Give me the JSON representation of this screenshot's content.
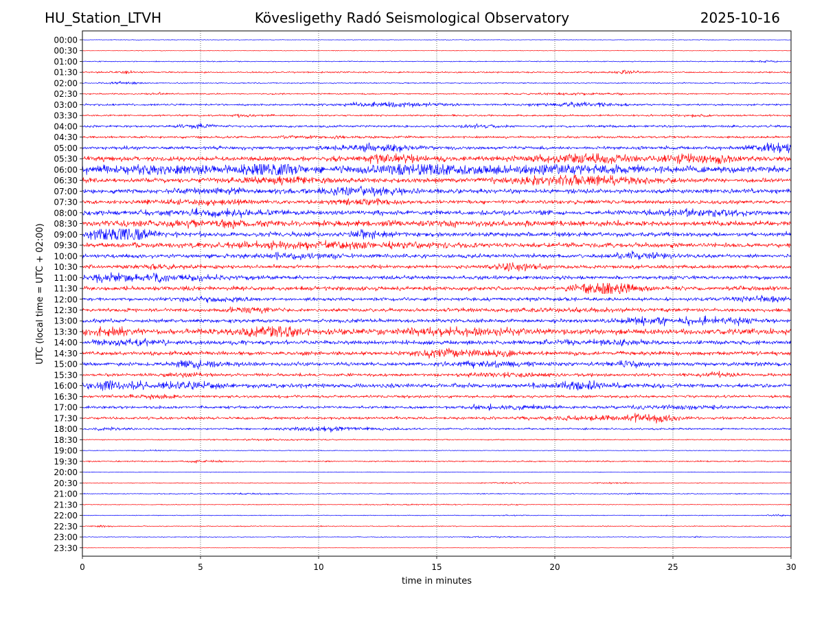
{
  "header": {
    "station": "HU_Station_LTVH",
    "observatory": "Kövesligethy Radó Seismological Observatory",
    "date": "2025-10-16"
  },
  "chart_data": {
    "type": "line",
    "title": "Kövesligethy Radó Seismological Observatory",
    "xlabel": "time in minutes",
    "ylabel": "UTC (local time = UTC + 02:00)",
    "xlim": [
      0,
      30
    ],
    "xticks": [
      0,
      5,
      10,
      15,
      20,
      25,
      30
    ],
    "vertical_gridlines": [
      5,
      10,
      15,
      20,
      25
    ],
    "colors": [
      "#0000ff",
      "#ff0000"
    ],
    "rows": [
      {
        "label": "00:00",
        "amp": 0.3,
        "bursts": [
          [
            16.5,
            0.2,
            1.5
          ]
        ]
      },
      {
        "label": "00:30",
        "amp": 0.3,
        "bursts": [
          [
            26.5,
            0.2,
            1.5
          ]
        ]
      },
      {
        "label": "01:00",
        "amp": 0.5,
        "bursts": [
          [
            28.8,
            0.4,
            3
          ]
        ]
      },
      {
        "label": "01:30",
        "amp": 0.8,
        "bursts": [
          [
            1.8,
            0.3,
            2.5
          ],
          [
            23,
            0.4,
            3
          ]
        ]
      },
      {
        "label": "02:00",
        "amp": 0.6,
        "bursts": [
          [
            1.7,
            0.5,
            3
          ]
        ]
      },
      {
        "label": "02:30",
        "amp": 0.7,
        "bursts": [
          [
            3.2,
            0.4,
            2
          ],
          [
            21,
            1.5,
            2
          ]
        ]
      },
      {
        "label": "03:00",
        "amp": 1.0,
        "bursts": [
          [
            13,
            1.5,
            3
          ],
          [
            21,
            1.2,
            3
          ]
        ]
      },
      {
        "label": "03:30",
        "amp": 0.9,
        "bursts": [
          [
            7,
            0.6,
            2
          ],
          [
            26,
            0.5,
            2
          ]
        ]
      },
      {
        "label": "04:00",
        "amp": 1.2,
        "bursts": [
          [
            4.8,
            0.5,
            3
          ],
          [
            17,
            0.6,
            2
          ]
        ]
      },
      {
        "label": "04:30",
        "amp": 1.2,
        "bursts": [
          [
            10,
            1.5,
            1.5
          ]
        ]
      },
      {
        "label": "05:00",
        "amp": 1.8,
        "bursts": [
          [
            12.5,
            1.0,
            3
          ],
          [
            29.5,
            0.8,
            3
          ]
        ]
      },
      {
        "label": "05:30",
        "amp": 2.5,
        "bursts": [
          [
            13,
            1.0,
            2.5
          ],
          [
            21.5,
            1.5,
            2.5
          ],
          [
            26,
            1.0,
            2.5
          ]
        ]
      },
      {
        "label": "06:00",
        "amp": 3.2,
        "bursts": [
          [
            3,
            2.5,
            1.8
          ],
          [
            8,
            1.0,
            2.5
          ],
          [
            14.5,
            1.5,
            2.5
          ],
          [
            20,
            2.5,
            1.8
          ]
        ]
      },
      {
        "label": "06:30",
        "amp": 2.4,
        "bursts": [
          [
            8.5,
            1.0,
            2.5
          ],
          [
            21,
            2.0,
            2.8
          ]
        ]
      },
      {
        "label": "07:00",
        "amp": 2.2,
        "bursts": [
          [
            12,
            1.2,
            2.8
          ],
          [
            6,
            1.5,
            1.6
          ]
        ]
      },
      {
        "label": "07:30",
        "amp": 2.0,
        "bursts": [
          [
            12,
            1.0,
            2
          ],
          [
            5,
            1.5,
            1.8
          ]
        ]
      },
      {
        "label": "08:00",
        "amp": 2.4,
        "bursts": [
          [
            6,
            1.5,
            2
          ],
          [
            26,
            1.5,
            2
          ]
        ]
      },
      {
        "label": "08:30",
        "amp": 2.6,
        "bursts": [
          [
            5,
            2.0,
            1.8
          ],
          [
            16,
            3.0,
            1.3
          ]
        ]
      },
      {
        "label": "09:00",
        "amp": 2.4,
        "bursts": [
          [
            1.7,
            0.8,
            5
          ],
          [
            12,
            0.5,
            2.5
          ]
        ]
      },
      {
        "label": "09:30",
        "amp": 2.4,
        "bursts": [
          [
            10,
            3.0,
            2
          ]
        ]
      },
      {
        "label": "10:00",
        "amp": 2.0,
        "bursts": [
          [
            23.5,
            1.0,
            2.2
          ],
          [
            9,
            1.5,
            1.8
          ]
        ]
      },
      {
        "label": "10:30",
        "amp": 1.8,
        "bursts": [
          [
            18.5,
            0.8,
            3
          ],
          [
            3.5,
            1.0,
            1.5
          ]
        ]
      },
      {
        "label": "11:00",
        "amp": 2.0,
        "bursts": [
          [
            1.2,
            0.8,
            3
          ],
          [
            3.2,
            0.5,
            2.5
          ],
          [
            5,
            1.0,
            1.8
          ]
        ]
      },
      {
        "label": "11:30",
        "amp": 2.2,
        "bursts": [
          [
            22.2,
            0.8,
            4.5
          ]
        ]
      },
      {
        "label": "12:00",
        "amp": 1.8,
        "bursts": [
          [
            5.5,
            1.0,
            2
          ],
          [
            28.5,
            1.0,
            2.2
          ]
        ]
      },
      {
        "label": "12:30",
        "amp": 1.8,
        "bursts": [
          [
            7,
            0.6,
            2.5
          ],
          [
            20,
            2.0,
            1.5
          ]
        ]
      },
      {
        "label": "13:00",
        "amp": 2.0,
        "bursts": [
          [
            24.5,
            1.2,
            2.5
          ],
          [
            27,
            1.0,
            2
          ]
        ]
      },
      {
        "label": "13:30",
        "amp": 2.8,
        "bursts": [
          [
            1,
            1.0,
            2.2
          ],
          [
            8,
            1.0,
            2.8
          ],
          [
            16,
            2.0,
            1.8
          ]
        ]
      },
      {
        "label": "14:00",
        "amp": 2.2,
        "bursts": [
          [
            2,
            1.0,
            1.8
          ],
          [
            22,
            2.0,
            1.6
          ]
        ]
      },
      {
        "label": "14:30",
        "amp": 2.0,
        "bursts": [
          [
            15,
            0.6,
            2.5
          ],
          [
            17,
            1.5,
            2
          ]
        ]
      },
      {
        "label": "15:00",
        "amp": 2.0,
        "bursts": [
          [
            5,
            0.8,
            2.5
          ],
          [
            17.5,
            1.0,
            2.2
          ],
          [
            23.2,
            0.5,
            2.5
          ]
        ]
      },
      {
        "label": "15:30",
        "amp": 1.6,
        "bursts": [
          [
            18,
            1.0,
            2
          ],
          [
            27,
            0.5,
            2.5
          ],
          [
            4.5,
            0.5,
            2
          ]
        ]
      },
      {
        "label": "16:00",
        "amp": 2.2,
        "bursts": [
          [
            1.5,
            1.0,
            2.8
          ],
          [
            4.5,
            1.0,
            2
          ],
          [
            21,
            1.0,
            2.5
          ]
        ]
      },
      {
        "label": "16:30",
        "amp": 1.4,
        "bursts": [
          [
            3,
            1.0,
            1.8
          ]
        ]
      },
      {
        "label": "17:00",
        "amp": 1.4,
        "bursts": [
          [
            18,
            1.5,
            2.2
          ],
          [
            25,
            1.5,
            2.2
          ]
        ]
      },
      {
        "label": "17:30",
        "amp": 1.4,
        "bursts": [
          [
            22,
            2.0,
            2.2
          ],
          [
            24.2,
            0.6,
            3.5
          ]
        ]
      },
      {
        "label": "18:00",
        "amp": 1.0,
        "bursts": [
          [
            10.5,
            1.5,
            2.8
          ],
          [
            1,
            0.5,
            2
          ]
        ]
      },
      {
        "label": "18:30",
        "amp": 0.6,
        "bursts": [
          [
            8,
            1.5,
            1.8
          ]
        ]
      },
      {
        "label": "19:00",
        "amp": 0.4,
        "bursts": [
          [
            3,
            0.5,
            2
          ]
        ]
      },
      {
        "label": "19:30",
        "amp": 0.7,
        "bursts": [
          [
            5,
            0.6,
            2.5
          ]
        ]
      },
      {
        "label": "20:00",
        "amp": 0.3,
        "bursts": []
      },
      {
        "label": "20:30",
        "amp": 0.4,
        "bursts": [
          [
            18,
            0.6,
            2.5
          ],
          [
            22.5,
            0.6,
            2.5
          ]
        ]
      },
      {
        "label": "21:00",
        "amp": 0.5,
        "bursts": [
          [
            7,
            1.0,
            2.2
          ],
          [
            23.5,
            0.5,
            2
          ]
        ]
      },
      {
        "label": "21:30",
        "amp": 0.4,
        "bursts": [
          [
            14.5,
            1.5,
            2
          ],
          [
            18,
            0.5,
            2
          ]
        ]
      },
      {
        "label": "22:00",
        "amp": 0.4,
        "bursts": [
          [
            18,
            0.5,
            2
          ],
          [
            29.5,
            0.4,
            2.5
          ]
        ]
      },
      {
        "label": "22:30",
        "amp": 0.5,
        "bursts": [
          [
            0.8,
            0.3,
            3
          ]
        ]
      },
      {
        "label": "23:00",
        "amp": 0.4,
        "bursts": [
          [
            17.5,
            1.0,
            2
          ],
          [
            26,
            0.1,
            4
          ]
        ]
      },
      {
        "label": "23:30",
        "amp": 0.2,
        "bursts": []
      }
    ]
  }
}
